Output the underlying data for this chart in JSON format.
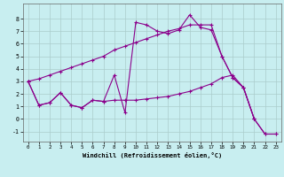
{
  "xlabel": "Windchill (Refroidissement éolien,°C)",
  "bg_color": "#c8eef0",
  "line_color": "#8b008b",
  "grid_color": "#aacccc",
  "xlim": [
    -0.5,
    23.5
  ],
  "ylim": [
    -1.8,
    9.2
  ],
  "xticks": [
    0,
    1,
    2,
    3,
    4,
    5,
    6,
    7,
    8,
    9,
    10,
    11,
    12,
    13,
    14,
    15,
    16,
    17,
    18,
    19,
    20,
    21,
    22,
    23
  ],
  "yticks": [
    -1,
    0,
    1,
    2,
    3,
    4,
    5,
    6,
    7,
    8
  ],
  "line1_x": [
    0,
    1,
    2,
    3,
    4,
    5,
    6,
    7,
    8,
    9,
    10,
    11,
    12,
    13,
    14,
    15,
    16,
    17,
    18,
    19,
    20,
    21,
    22,
    23
  ],
  "line1_y": [
    3.0,
    3.2,
    3.5,
    3.8,
    4.1,
    4.4,
    4.7,
    5.0,
    5.5,
    5.8,
    6.1,
    6.4,
    6.7,
    7.0,
    7.2,
    7.5,
    7.5,
    7.5,
    5.0,
    3.3,
    2.5,
    0.0,
    -1.2,
    -1.2
  ],
  "line2_x": [
    0,
    1,
    2,
    3,
    4,
    5,
    6,
    7,
    8,
    9,
    10,
    11,
    12,
    13,
    14,
    15,
    16,
    17,
    18,
    19,
    20,
    21,
    22,
    23
  ],
  "line2_y": [
    3.0,
    1.1,
    1.3,
    2.1,
    1.1,
    0.9,
    1.5,
    1.4,
    1.5,
    1.5,
    1.5,
    1.6,
    1.7,
    1.8,
    2.0,
    2.2,
    2.5,
    2.8,
    3.3,
    3.5,
    2.5,
    0.0,
    -1.2,
    -1.2
  ],
  "line3_x": [
    0,
    1,
    2,
    3,
    4,
    5,
    6,
    7,
    8,
    9,
    10,
    11,
    12,
    13,
    14,
    15,
    16,
    17,
    18,
    19,
    20,
    21
  ],
  "line3_y": [
    3.0,
    1.1,
    1.3,
    2.1,
    1.1,
    0.9,
    1.5,
    1.4,
    3.5,
    0.5,
    7.7,
    7.5,
    7.0,
    6.8,
    7.1,
    8.3,
    7.3,
    7.1,
    5.0,
    3.3,
    2.5,
    0.0
  ]
}
